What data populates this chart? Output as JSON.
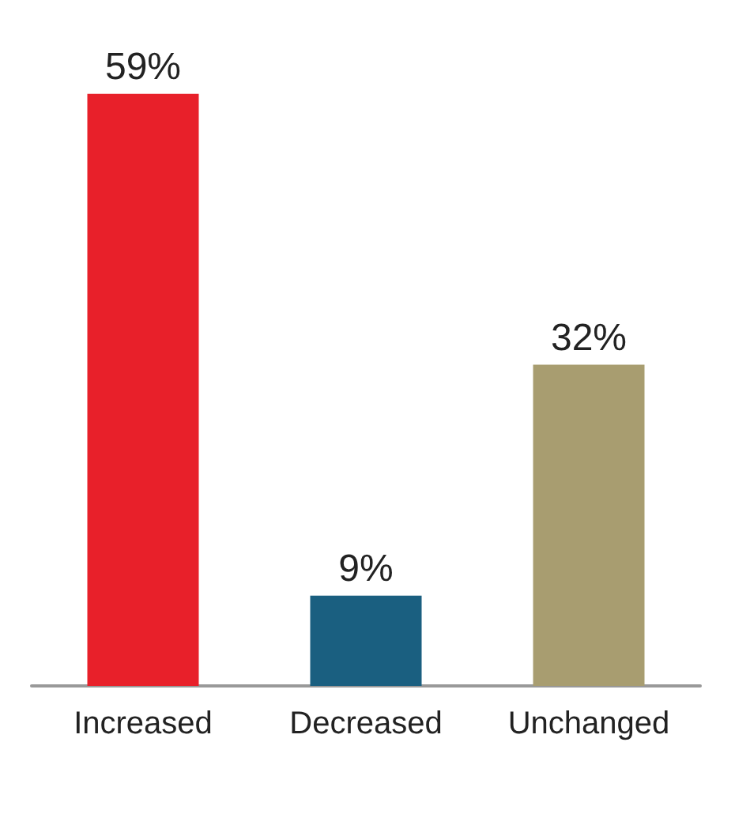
{
  "chart_data": {
    "type": "bar",
    "categories": [
      "Increased",
      "Decreased",
      "Unchanged"
    ],
    "values": [
      59,
      9,
      32
    ],
    "colors": [
      "#e8202a",
      "#1a5f80",
      "#a89d70"
    ],
    "value_labels": [
      "59%",
      "9%",
      "32%"
    ]
  }
}
